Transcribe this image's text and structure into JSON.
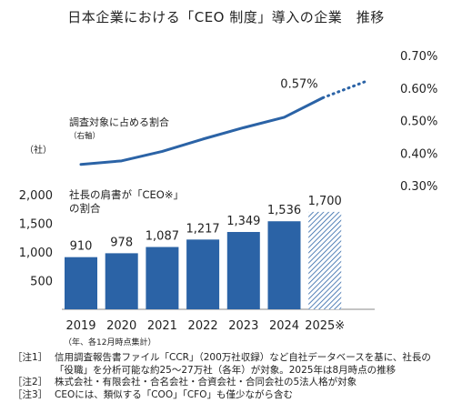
{
  "title": "日本企業における「CEO 制度」導入の企業　推移",
  "chart_data": {
    "type": "bar",
    "categories": [
      "2019",
      "2020",
      "2021",
      "2022",
      "2023",
      "2024",
      "2025※"
    ],
    "left_axis": {
      "unit_label": "（社）",
      "ticks": [
        500,
        1000,
        1500,
        2000
      ],
      "tick_labels": [
        "500",
        "1,000",
        "1,500",
        "2,000"
      ]
    },
    "right_axis": {
      "ticks": [
        0.3,
        0.4,
        0.5,
        0.6,
        0.7
      ],
      "tick_labels": [
        "0.30%",
        "0.40%",
        "0.50%",
        "0.60%",
        "0.70%"
      ]
    },
    "bar_series": {
      "label_line1": "社長の肩書が「CEO※」",
      "label_line2": "の割合",
      "values": [
        910,
        978,
        1087,
        1217,
        1349,
        1536,
        1700
      ],
      "value_labels": [
        "910",
        "978",
        "1,087",
        "1,217",
        "1,349",
        "1,536",
        "1,700"
      ],
      "color": "#2b63a6",
      "projected_index": 6
    },
    "line_series": {
      "label_line1": "調査対象に占める割合",
      "label_line2": "（右軸）",
      "values": [
        0.365,
        0.376,
        0.405,
        0.443,
        0.478,
        0.51,
        0.57,
        0.62
      ],
      "x_positions": [
        0,
        1,
        2,
        3,
        4,
        5,
        5.95,
        7.0
      ],
      "solid_until_index": 6,
      "value_label": "0.57%",
      "color": "#2b63a6"
    },
    "x_footnote": "（年、各12月時点集計）"
  },
  "notes": [
    {
      "tag": "［注1］",
      "text": "信用調査報告書ファイル「CCR」（200万社収録）など自社データベースを基に、社長の"
    },
    {
      "tag": "",
      "text": "「役職」を分析可能な約25～27万社（各年）が対象。2025年は8月時点の推移"
    },
    {
      "tag": "［注2］",
      "text": "株式会社・有限会社・合名会社・合資会社・合同会社の5法人格が対象"
    },
    {
      "tag": "［注3］",
      "text": "CEOには、類似する「COO」「CFO」も僅少ながら含む"
    }
  ]
}
